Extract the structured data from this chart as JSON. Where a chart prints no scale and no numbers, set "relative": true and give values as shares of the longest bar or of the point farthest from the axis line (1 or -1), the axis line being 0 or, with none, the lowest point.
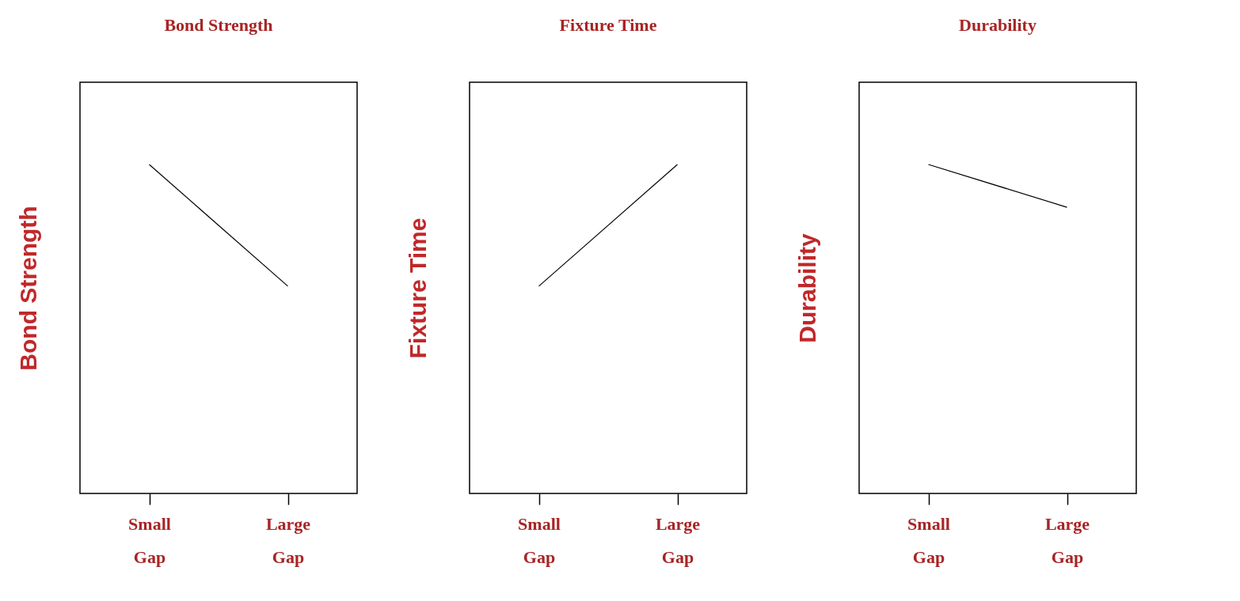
{
  "chart_data": [
    {
      "type": "line",
      "title": "Bond Strength",
      "ylabel": "Bond Strength",
      "categories": [
        "Small Gap",
        "Large Gap"
      ],
      "values": [
        1,
        0.63
      ],
      "color": "#000000",
      "relative": true
    },
    {
      "type": "line",
      "title": "Fixture Time",
      "ylabel": "Fixture Time",
      "categories": [
        "Small Gap",
        "Large Gap"
      ],
      "values": [
        0.63,
        1
      ],
      "color": "#000000",
      "relative": true
    },
    {
      "type": "line",
      "title": "Durability",
      "ylabel": "Durability",
      "categories": [
        "Small Gap",
        "Large Gap"
      ],
      "values": [
        1,
        0.87
      ],
      "color": "#000000",
      "relative": true
    }
  ]
}
